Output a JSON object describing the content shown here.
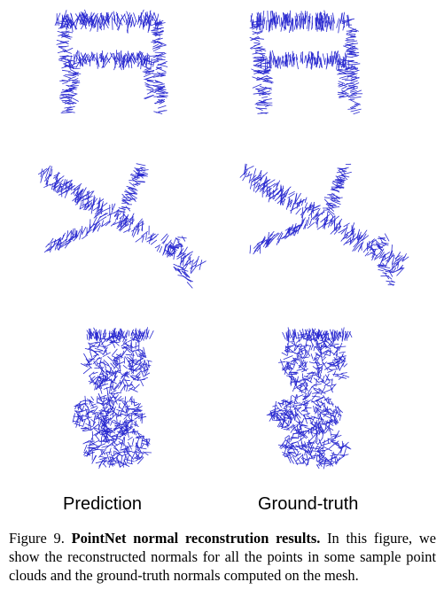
{
  "figure": {
    "rows": [
      "chair",
      "airplane",
      "toilet"
    ],
    "labels": {
      "prediction": "Prediction",
      "ground_truth": "Ground-truth"
    },
    "stroke_color": "#2a2ad0"
  },
  "caption": {
    "number": "Figure 9.",
    "title": "PointNet normal reconstrution results.",
    "text": "In this figure, we show the reconstructed normals for all the points in some sample point clouds and the ground-truth normals computed on the mesh."
  }
}
